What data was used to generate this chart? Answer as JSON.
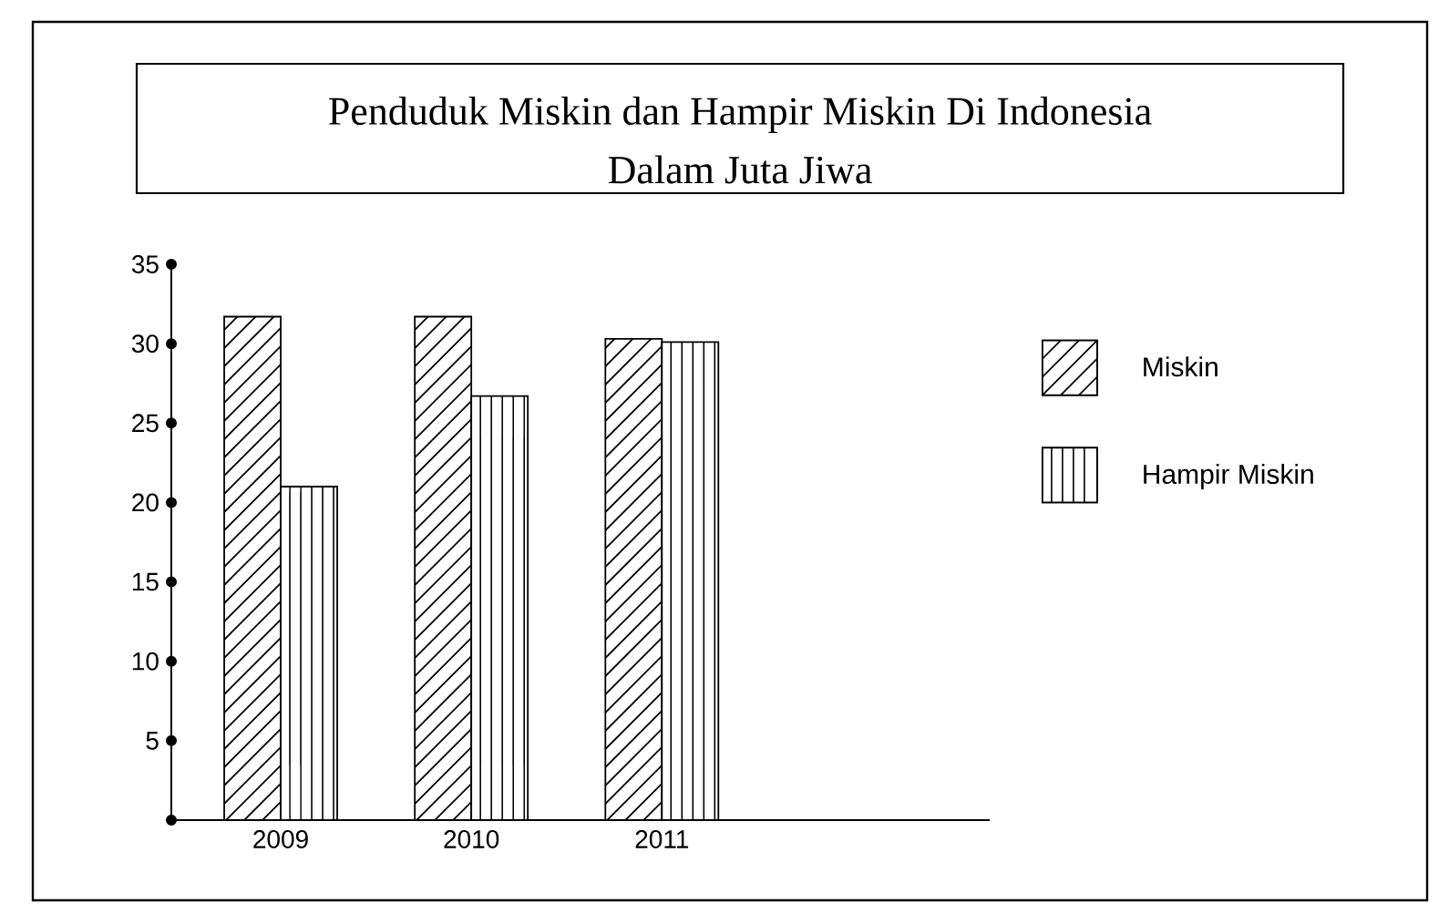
{
  "chart_data": {
    "type": "bar",
    "title": "Penduduk Miskin dan Hampir Miskin Di Indonesia",
    "subtitle": "Dalam Juta Jiwa",
    "categories": [
      "2009",
      "2010",
      "2011"
    ],
    "series": [
      {
        "name": "Miskin",
        "color": "#ffffff",
        "values": [
          31.7,
          31.7,
          30.3
        ]
      },
      {
        "name": "Hampir Miskin",
        "color": "#ffffff",
        "values": [
          21,
          26.7,
          30.1
        ]
      }
    ],
    "ylim": [
      0,
      35
    ],
    "yticks": [
      {
        "value": 0,
        "label": null
      },
      5,
      10,
      15,
      20,
      25,
      30,
      35
    ],
    "legend": "right"
  }
}
